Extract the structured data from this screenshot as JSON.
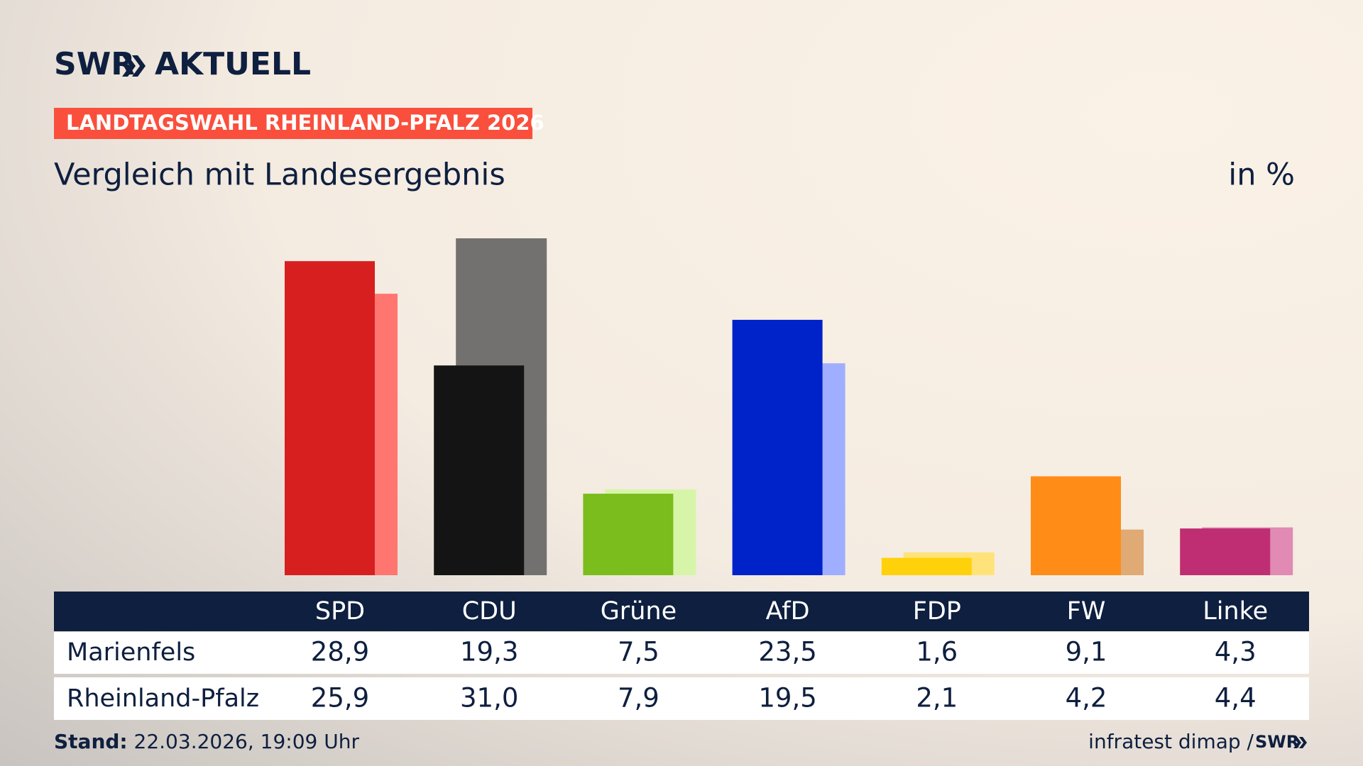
{
  "header": {
    "brand": "SWR",
    "section": "AKTUELL",
    "tag": "LANDTAGSWAHL RHEINLAND-PFALZ 2026"
  },
  "chart_data": {
    "type": "bar",
    "title": "Vergleich mit Landesergebnis",
    "unit": "in %",
    "categories": [
      "SPD",
      "CDU",
      "Grüne",
      "AfD",
      "FDP",
      "FW",
      "Linke"
    ],
    "series": [
      {
        "name": "Marienfels",
        "values": [
          28.9,
          19.3,
          7.5,
          23.5,
          1.6,
          9.1,
          4.3
        ],
        "value_labels": [
          "28,9",
          "19,3",
          "7,5",
          "23,5",
          "1,6",
          "9,1",
          "4,3"
        ],
        "colors": [
          "#d71f1f",
          "#141414",
          "#7abd1c",
          "#0022c9",
          "#ffd10a",
          "#ff8c17",
          "#bf2d72"
        ]
      },
      {
        "name": "Rheinland-Pfalz",
        "values": [
          25.9,
          31.0,
          7.9,
          19.5,
          2.1,
          4.2,
          4.4
        ],
        "value_labels": [
          "25,9",
          "31,0",
          "7,9",
          "19,5",
          "2,1",
          "4,2",
          "4,4"
        ],
        "colors": [
          "#ff7670",
          "#737170",
          "#d7f5a8",
          "#a0aeff",
          "#ffe37a",
          "#e0aa74",
          "#e08ab4"
        ]
      }
    ]
  },
  "footer": {
    "stand_label": "Stand:",
    "stand": "22.03.2026, 19:09 Uhr",
    "source": "infratest dimap /",
    "brand": "SWR"
  }
}
